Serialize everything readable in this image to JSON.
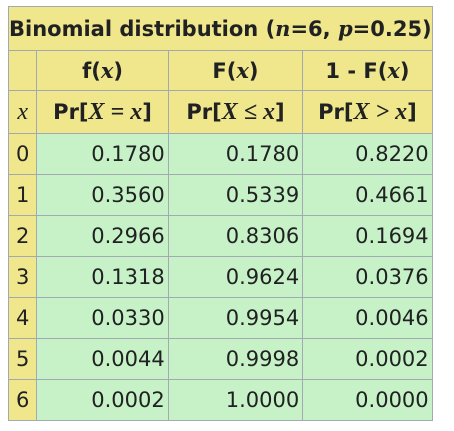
{
  "title": {
    "prefix": "Binomial distribution (",
    "n_sym": "n",
    "n_val": "=6, ",
    "p_sym": "p",
    "p_val": "=0.25)"
  },
  "columns": [
    {
      "func": "f",
      "var": "x",
      "prob_left": "Pr[",
      "prob_X": "X",
      "prob_op": " = ",
      "prob_x": "x",
      "prob_right": "]"
    },
    {
      "func": "F",
      "var": "x",
      "prob_left": "Pr[",
      "prob_X": "X",
      "prob_op": " ≤ ",
      "prob_x": "x",
      "prob_right": "]"
    },
    {
      "func": "1 - F",
      "var": "x",
      "prob_left": "Pr[",
      "prob_X": "X",
      "prob_op": " > ",
      "prob_x": "x",
      "prob_right": "]"
    }
  ],
  "x_label": "x",
  "rows": [
    {
      "x": "0",
      "f": "0.1780",
      "F": "0.1780",
      "S": "0.8220"
    },
    {
      "x": "1",
      "f": "0.3560",
      "F": "0.5339",
      "S": "0.4661"
    },
    {
      "x": "2",
      "f": "0.2966",
      "F": "0.8306",
      "S": "0.1694"
    },
    {
      "x": "3",
      "f": "0.1318",
      "F": "0.9624",
      "S": "0.0376"
    },
    {
      "x": "4",
      "f": "0.0330",
      "F": "0.9954",
      "S": "0.0046"
    },
    {
      "x": "5",
      "f": "0.0044",
      "F": "0.9998",
      "S": "0.0002"
    },
    {
      "x": "6",
      "f": "0.0002",
      "F": "1.0000",
      "S": "0.0000"
    }
  ],
  "colors": {
    "header_bg": "#f0e68c",
    "cell_bg": "#c7f2c7",
    "border": "#a2a9b1"
  }
}
